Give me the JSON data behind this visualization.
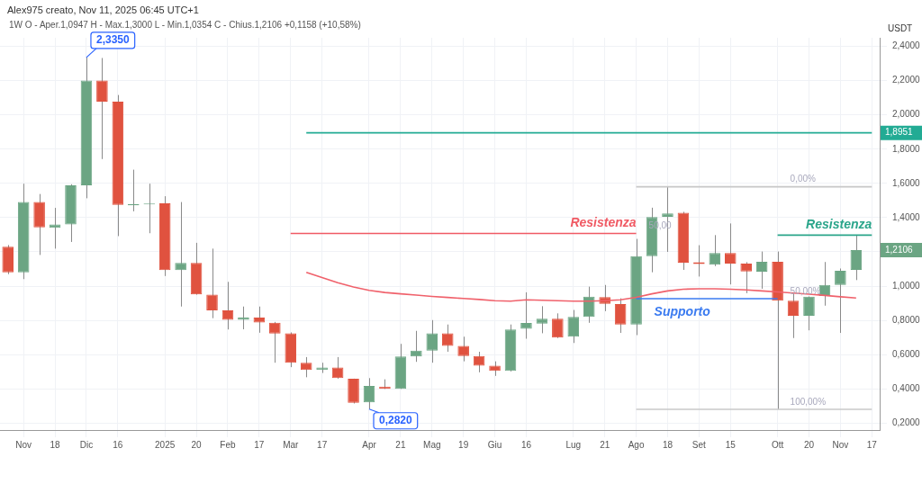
{
  "chart_data": {
    "type": "candlestick",
    "title": "Alex975 creato, Nov 11, 2025 06:45 UTC+1",
    "subtitle": "1W  O - Aper.1,0947  H - Max.1,3000  L - Min.1,0354  C - Chius.1,2106  +0,1158 (+10,58%)",
    "ylabel": "USDT",
    "categories": [
      null,
      "Nov",
      null,
      "18",
      null,
      "Dic",
      null,
      "16",
      null,
      null,
      "2025",
      null,
      "20",
      null,
      "Feb",
      null,
      "17",
      null,
      "Mar",
      null,
      "17",
      null,
      null,
      "Apr",
      null,
      "21",
      null,
      "Mag",
      null,
      "19",
      null,
      "Giu",
      null,
      "16",
      null,
      null,
      "Lug",
      null,
      "21",
      null,
      "Ago",
      null,
      "18",
      null,
      "Set",
      null,
      "15",
      null,
      null,
      "Ott",
      null,
      "20",
      null,
      "Nov",
      null,
      "17"
    ],
    "ohlc": [
      [
        1.23,
        1.24,
        1.07,
        1.08
      ],
      [
        1.08,
        1.598,
        1.041,
        1.491
      ],
      [
        1.491,
        1.538,
        1.182,
        1.343
      ],
      [
        1.34,
        1.457,
        1.219,
        1.36
      ],
      [
        1.36,
        1.595,
        1.258,
        1.589
      ],
      [
        1.589,
        2.335,
        1.513,
        2.201
      ],
      [
        2.201,
        2.332,
        1.742,
        2.077
      ],
      [
        2.077,
        2.116,
        1.292,
        1.474
      ],
      [
        1.472,
        1.68,
        1.437,
        1.479
      ],
      [
        1.477,
        1.598,
        1.309,
        1.482
      ],
      [
        1.484,
        1.525,
        1.059,
        1.093
      ],
      [
        1.093,
        1.491,
        0.881,
        1.136
      ],
      [
        1.136,
        1.253,
        0.95,
        0.952
      ],
      [
        0.95,
        1.219,
        0.813,
        0.859
      ],
      [
        0.859,
        1.025,
        0.747,
        0.803
      ],
      [
        0.804,
        0.881,
        0.748,
        0.816
      ],
      [
        0.816,
        0.881,
        0.728,
        0.787
      ],
      [
        0.786,
        0.791,
        0.553,
        0.723
      ],
      [
        0.725,
        0.73,
        0.527,
        0.553
      ],
      [
        0.553,
        0.586,
        0.468,
        0.51
      ],
      [
        0.51,
        0.553,
        0.493,
        0.525
      ],
      [
        0.525,
        0.586,
        0.46,
        0.463
      ],
      [
        0.459,
        0.46,
        0.315,
        0.319
      ],
      [
        0.322,
        0.463,
        0.282,
        0.417
      ],
      [
        0.414,
        0.456,
        0.4,
        0.4
      ],
      [
        0.4,
        0.663,
        0.4,
        0.59
      ],
      [
        0.59,
        0.739,
        0.558,
        0.624
      ],
      [
        0.624,
        0.802,
        0.553,
        0.725
      ],
      [
        0.725,
        0.776,
        0.617,
        0.651
      ],
      [
        0.651,
        0.705,
        0.561,
        0.592
      ],
      [
        0.592,
        0.617,
        0.497,
        0.536
      ],
      [
        0.536,
        0.561,
        0.476,
        0.505
      ],
      [
        0.505,
        0.776,
        0.502,
        0.747
      ],
      [
        0.751,
        0.964,
        0.693,
        0.785
      ],
      [
        0.781,
        0.883,
        0.725,
        0.81
      ],
      [
        0.81,
        0.841,
        0.697,
        0.7
      ],
      [
        0.705,
        0.861,
        0.668,
        0.82
      ],
      [
        0.82,
        0.997,
        0.786,
        0.939
      ],
      [
        0.936,
        1.007,
        0.854,
        0.897
      ],
      [
        0.895,
        0.929,
        0.727,
        0.776
      ],
      [
        0.776,
        1.276,
        0.714,
        1.175
      ],
      [
        1.175,
        1.458,
        1.081,
        1.403
      ],
      [
        1.405,
        1.578,
        1.2,
        1.424
      ],
      [
        1.429,
        1.434,
        1.095,
        1.137
      ],
      [
        1.14,
        1.239,
        1.056,
        1.129
      ],
      [
        1.125,
        1.298,
        1.117,
        1.193
      ],
      [
        1.193,
        1.366,
        1.01,
        1.132
      ],
      [
        1.132,
        1.14,
        0.959,
        1.086
      ],
      [
        1.085,
        1.202,
        0.985,
        1.142
      ],
      [
        1.142,
        1.202,
        0.28,
        0.915
      ],
      [
        0.915,
        0.959,
        0.697,
        0.827
      ],
      [
        0.827,
        0.94,
        0.742,
        0.939
      ],
      [
        0.942,
        1.141,
        0.886,
        1.007
      ],
      [
        1.007,
        1.103,
        0.727,
        1.09
      ],
      [
        1.0947,
        1.3,
        1.0354,
        1.2106
      ],
      null
    ],
    "colors": [
      "#e0523f",
      "#6ba583",
      "#e0523f",
      "#6ba583",
      "#6ba583",
      "#6ba583",
      "#e0523f",
      "#e0523f",
      "#6ba583",
      "#6ba583",
      "#e0523f",
      "#6ba583",
      "#e0523f",
      "#e0523f",
      "#e0523f",
      "#6ba583",
      "#e0523f",
      "#e0523f",
      "#e0523f",
      "#e0523f",
      "#6ba583",
      "#e0523f",
      "#e0523f",
      "#6ba583",
      "#e0523f",
      "#6ba583",
      "#6ba583",
      "#6ba583",
      "#e0523f",
      "#e0523f",
      "#e0523f",
      "#e0523f",
      "#6ba583",
      "#6ba583",
      "#6ba583",
      "#e0523f",
      "#6ba583",
      "#6ba583",
      "#e0523f",
      "#e0523f",
      "#6ba583",
      "#6ba583",
      "#6ba583",
      "#e0523f",
      "#e0523f",
      "#6ba583",
      "#e0523f",
      "#e0523f",
      "#6ba583",
      "#e0523f",
      "#e0523f",
      "#6ba583",
      "#6ba583",
      "#6ba583",
      "#6ba583",
      null
    ],
    "value_labels": [
      null,
      null,
      null,
      null,
      null,
      "2,3350",
      null,
      null,
      null,
      null,
      null,
      null,
      null,
      null,
      null,
      null,
      null,
      null,
      null,
      null,
      null,
      null,
      null,
      "0,2820",
      null,
      null,
      null,
      null,
      null,
      null,
      null,
      null,
      null,
      null,
      null,
      null,
      null,
      null,
      null,
      null,
      null,
      null,
      null,
      null,
      null,
      null,
      null,
      null,
      null,
      null,
      null,
      null,
      null,
      null,
      "1,2106",
      null
    ],
    "series": [
      {
        "type": "line",
        "color": "#f0616b",
        "values": [
          null,
          null,
          null,
          null,
          null,
          null,
          null,
          null,
          null,
          null,
          null,
          null,
          null,
          null,
          null,
          null,
          null,
          null,
          null,
          1.081,
          1.05,
          1.02,
          0.995,
          0.975,
          0.963,
          0.955,
          0.948,
          0.94,
          0.934,
          0.928,
          0.922,
          0.915,
          0.912,
          0.92,
          0.918,
          0.915,
          0.912,
          0.912,
          0.915,
          0.92,
          0.935,
          0.955,
          0.972,
          0.982,
          0.985,
          0.985,
          0.982,
          0.978,
          0.972,
          0.966,
          0.96,
          0.953,
          0.946,
          0.938,
          0.931,
          null
        ]
      },
      {
        "type": "line",
        "color": "#22ab94",
        "value_labels": [
          null,
          null,
          null,
          null,
          null,
          null,
          null,
          null,
          null,
          null,
          null,
          null,
          null,
          null,
          null,
          null,
          null,
          null,
          null,
          null,
          null,
          null,
          null,
          null,
          null,
          null,
          null,
          null,
          null,
          null,
          null,
          null,
          null,
          null,
          null,
          null,
          null,
          null,
          null,
          null,
          null,
          null,
          null,
          null,
          null,
          null,
          null,
          null,
          null,
          null,
          null,
          null,
          null,
          null,
          null,
          "1,8951"
        ],
        "values": [
          null,
          null,
          null,
          null,
          null,
          null,
          null,
          null,
          null,
          null,
          null,
          null,
          null,
          null,
          null,
          null,
          null,
          null,
          null,
          1.8951,
          1.8951,
          1.8951,
          1.8951,
          1.8951,
          1.8951,
          1.8951,
          1.8951,
          1.8951,
          1.8951,
          1.8951,
          1.8951,
          1.8951,
          1.8951,
          1.8951,
          1.8951,
          1.8951,
          1.8951,
          1.8951,
          1.8951,
          1.8951,
          1.8951,
          1.8951,
          1.8951,
          1.8951,
          1.8951,
          1.8951,
          1.8951,
          1.8951,
          1.8951,
          1.8951,
          1.8951,
          1.8951,
          1.8951,
          1.8951,
          1.8951,
          1.8951
        ]
      },
      {
        "type": "line",
        "name": "Resistenza",
        "color": "#f05a64",
        "values": [
          null,
          null,
          null,
          null,
          null,
          null,
          null,
          null,
          null,
          null,
          null,
          null,
          null,
          null,
          null,
          null,
          null,
          null,
          1.308,
          1.308,
          1.308,
          1.308,
          1.308,
          1.308,
          1.308,
          1.308,
          1.308,
          1.308,
          1.308,
          1.308,
          1.308,
          1.308,
          1.308,
          1.308,
          1.308,
          1.308,
          1.308,
          1.308,
          1.308,
          1.308,
          1.308,
          null,
          null,
          null,
          null,
          null,
          null,
          null,
          null,
          null,
          null,
          null,
          null,
          null,
          null,
          null
        ]
      },
      {
        "type": "line",
        "name": "Supporto",
        "color": "#3b7bf0",
        "values": [
          null,
          null,
          null,
          null,
          null,
          null,
          null,
          null,
          null,
          null,
          null,
          null,
          null,
          null,
          null,
          null,
          null,
          null,
          null,
          null,
          null,
          null,
          null,
          null,
          null,
          null,
          null,
          null,
          null,
          null,
          null,
          null,
          null,
          null,
          null,
          null,
          null,
          null,
          null,
          null,
          0.927,
          0.927,
          0.927,
          0.927,
          0.927,
          0.927,
          0.927,
          0.927,
          0.927,
          0.927,
          null,
          null,
          null,
          null,
          null,
          null
        ]
      },
      {
        "type": "line",
        "name": "Resistenza",
        "color": "#2aa58a",
        "values": [
          null,
          null,
          null,
          null,
          null,
          null,
          null,
          null,
          null,
          null,
          null,
          null,
          null,
          null,
          null,
          null,
          null,
          null,
          null,
          null,
          null,
          null,
          null,
          null,
          null,
          null,
          null,
          null,
          null,
          null,
          null,
          null,
          null,
          null,
          null,
          null,
          null,
          null,
          null,
          null,
          null,
          null,
          null,
          null,
          null,
          null,
          null,
          null,
          null,
          1.298,
          1.298,
          1.298,
          1.298,
          1.298,
          1.298,
          1.298
        ]
      },
      {
        "type": "line",
        "color": "#c8c8c8",
        "values": [
          null,
          null,
          null,
          null,
          null,
          null,
          null,
          null,
          null,
          null,
          null,
          null,
          null,
          null,
          null,
          null,
          null,
          null,
          null,
          null,
          null,
          null,
          null,
          null,
          null,
          null,
          null,
          null,
          null,
          null,
          null,
          null,
          null,
          null,
          null,
          null,
          null,
          null,
          null,
          null,
          1.58,
          1.58,
          1.58,
          1.58,
          1.58,
          1.58,
          1.58,
          1.58,
          1.58,
          1.58,
          1.58,
          1.58,
          1.58,
          1.58,
          1.58,
          1.58
        ]
      },
      {
        "type": "line",
        "color": "#c8c8c8",
        "values": [
          null,
          null,
          null,
          null,
          null,
          null,
          null,
          null,
          null,
          null,
          null,
          null,
          null,
          null,
          null,
          null,
          null,
          null,
          null,
          null,
          null,
          null,
          null,
          null,
          null,
          null,
          null,
          null,
          null,
          null,
          null,
          null,
          null,
          null,
          null,
          null,
          null,
          null,
          null,
          null,
          0.281,
          0.281,
          0.281,
          0.281,
          0.281,
          0.281,
          0.281,
          0.281,
          0.281,
          0.281,
          0.281,
          0.281,
          0.281,
          0.281,
          0.281,
          0.281
        ]
      }
    ],
    "annotations": [
      {
        "text": "0,00%",
        "x": "Ott",
        "y": 1.58
      },
      {
        "text": "50,00%",
        "x": "Ott",
        "y": 0.927
      },
      {
        "text": "100,00%",
        "x": "Ott",
        "y": 0.281
      },
      {
        "text": "50,00",
        "x": "Ago",
        "y": 1.308
      }
    ],
    "ylim": [
      0.16,
      2.45
    ],
    "yticks": [
      {
        "value": 0.2,
        "label": "0,2000"
      },
      {
        "value": 0.4,
        "label": "0,4000"
      },
      {
        "value": 0.6,
        "label": "0,6000"
      },
      {
        "value": 0.8,
        "label": "0,8000"
      },
      {
        "value": 1.0,
        "label": "1,0000"
      },
      {
        "value": 1.2,
        "label": null
      },
      {
        "value": 1.4,
        "label": "1,4000"
      },
      {
        "value": 1.6,
        "label": "1,6000"
      },
      {
        "value": 1.8,
        "label": "1,8000"
      },
      {
        "value": 2.0,
        "label": "2,0000"
      },
      {
        "value": 2.2,
        "label": "2,2000"
      },
      {
        "value": 2.4,
        "label": "2,4000"
      }
    ],
    "grid": true,
    "legend": false
  }
}
